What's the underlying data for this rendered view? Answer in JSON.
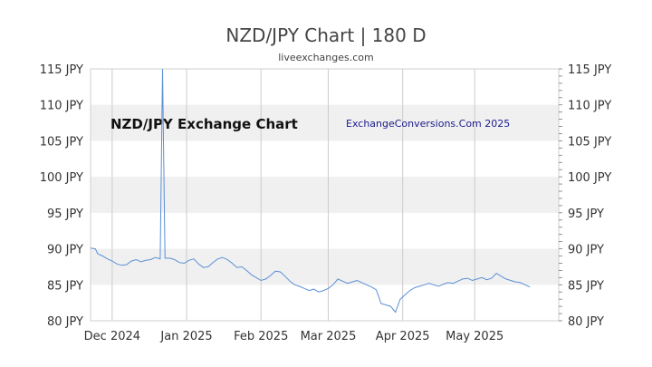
{
  "chart_data": {
    "type": "line",
    "title": "NZD/JPY Chart | 180 D",
    "subtitle": "liveexchanges.com",
    "watermark_left": "NZD/JPY Exchange Chart",
    "watermark_right": "ExchangeConversions.Com 2025",
    "y_ticks": [
      "80 JPY",
      "85 JPY",
      "90 JPY",
      "95 JPY",
      "100 JPY",
      "105 JPY",
      "110 JPY",
      "115 JPY"
    ],
    "y_tick_values": [
      80,
      85,
      90,
      95,
      100,
      105,
      110,
      115
    ],
    "ylim": [
      80,
      115
    ],
    "x_ticks": [
      "Dec 2024",
      "Jan 2025",
      "Feb 2025",
      "Mar 2025",
      "Apr 2025",
      "May 2025"
    ],
    "x_tick_positions": [
      9,
      40,
      71,
      99,
      130,
      160
    ],
    "xlim": [
      0,
      195
    ],
    "line_color": "#5b8fd6",
    "band_color": "#f0f0f0",
    "grid": true,
    "series": [
      {
        "values": [
          [
            0,
            90.1
          ],
          [
            2,
            90.0
          ],
          [
            3,
            89.3
          ],
          [
            5,
            89.0
          ],
          [
            7,
            88.6
          ],
          [
            9,
            88.3
          ],
          [
            11,
            87.9
          ],
          [
            13,
            87.7
          ],
          [
            15,
            87.8
          ],
          [
            17,
            88.3
          ],
          [
            19,
            88.5
          ],
          [
            21,
            88.2
          ],
          [
            23,
            88.4
          ],
          [
            25,
            88.5
          ],
          [
            27,
            88.8
          ],
          [
            29,
            88.6
          ],
          [
            30,
            115.0
          ],
          [
            31,
            88.7
          ],
          [
            33,
            88.7
          ],
          [
            35,
            88.5
          ],
          [
            37,
            88.1
          ],
          [
            39,
            88.0
          ],
          [
            41,
            88.4
          ],
          [
            43,
            88.6
          ],
          [
            45,
            87.9
          ],
          [
            47,
            87.4
          ],
          [
            49,
            87.5
          ],
          [
            51,
            88.1
          ],
          [
            53,
            88.6
          ],
          [
            55,
            88.8
          ],
          [
            57,
            88.5
          ],
          [
            59,
            88.0
          ],
          [
            61,
            87.4
          ],
          [
            63,
            87.5
          ],
          [
            65,
            87.0
          ],
          [
            67,
            86.4
          ],
          [
            69,
            86.0
          ],
          [
            71,
            85.6
          ],
          [
            73,
            85.8
          ],
          [
            75,
            86.3
          ],
          [
            77,
            86.9
          ],
          [
            79,
            86.8
          ],
          [
            81,
            86.2
          ],
          [
            83,
            85.5
          ],
          [
            85,
            85.0
          ],
          [
            87,
            84.8
          ],
          [
            89,
            84.5
          ],
          [
            91,
            84.2
          ],
          [
            93,
            84.4
          ],
          [
            95,
            84.0
          ],
          [
            97,
            84.2
          ],
          [
            99,
            84.5
          ],
          [
            101,
            85.0
          ],
          [
            103,
            85.8
          ],
          [
            105,
            85.5
          ],
          [
            107,
            85.2
          ],
          [
            109,
            85.4
          ],
          [
            111,
            85.6
          ],
          [
            113,
            85.3
          ],
          [
            115,
            85.0
          ],
          [
            117,
            84.7
          ],
          [
            119,
            84.3
          ],
          [
            121,
            82.4
          ],
          [
            123,
            82.2
          ],
          [
            125,
            82.0
          ],
          [
            127,
            81.2
          ],
          [
            129,
            83.0
          ],
          [
            131,
            83.6
          ],
          [
            133,
            84.2
          ],
          [
            135,
            84.6
          ],
          [
            137,
            84.8
          ],
          [
            139,
            85.0
          ],
          [
            141,
            85.2
          ],
          [
            143,
            85.0
          ],
          [
            145,
            84.8
          ],
          [
            147,
            85.1
          ],
          [
            149,
            85.3
          ],
          [
            151,
            85.2
          ],
          [
            153,
            85.5
          ],
          [
            155,
            85.8
          ],
          [
            157,
            85.9
          ],
          [
            159,
            85.6
          ],
          [
            161,
            85.8
          ],
          [
            163,
            86.0
          ],
          [
            165,
            85.7
          ],
          [
            167,
            85.9
          ],
          [
            169,
            86.6
          ],
          [
            171,
            86.2
          ],
          [
            173,
            85.8
          ],
          [
            175,
            85.6
          ],
          [
            177,
            85.4
          ],
          [
            179,
            85.3
          ],
          [
            181,
            85.0
          ],
          [
            183,
            84.7
          ]
        ]
      }
    ]
  }
}
